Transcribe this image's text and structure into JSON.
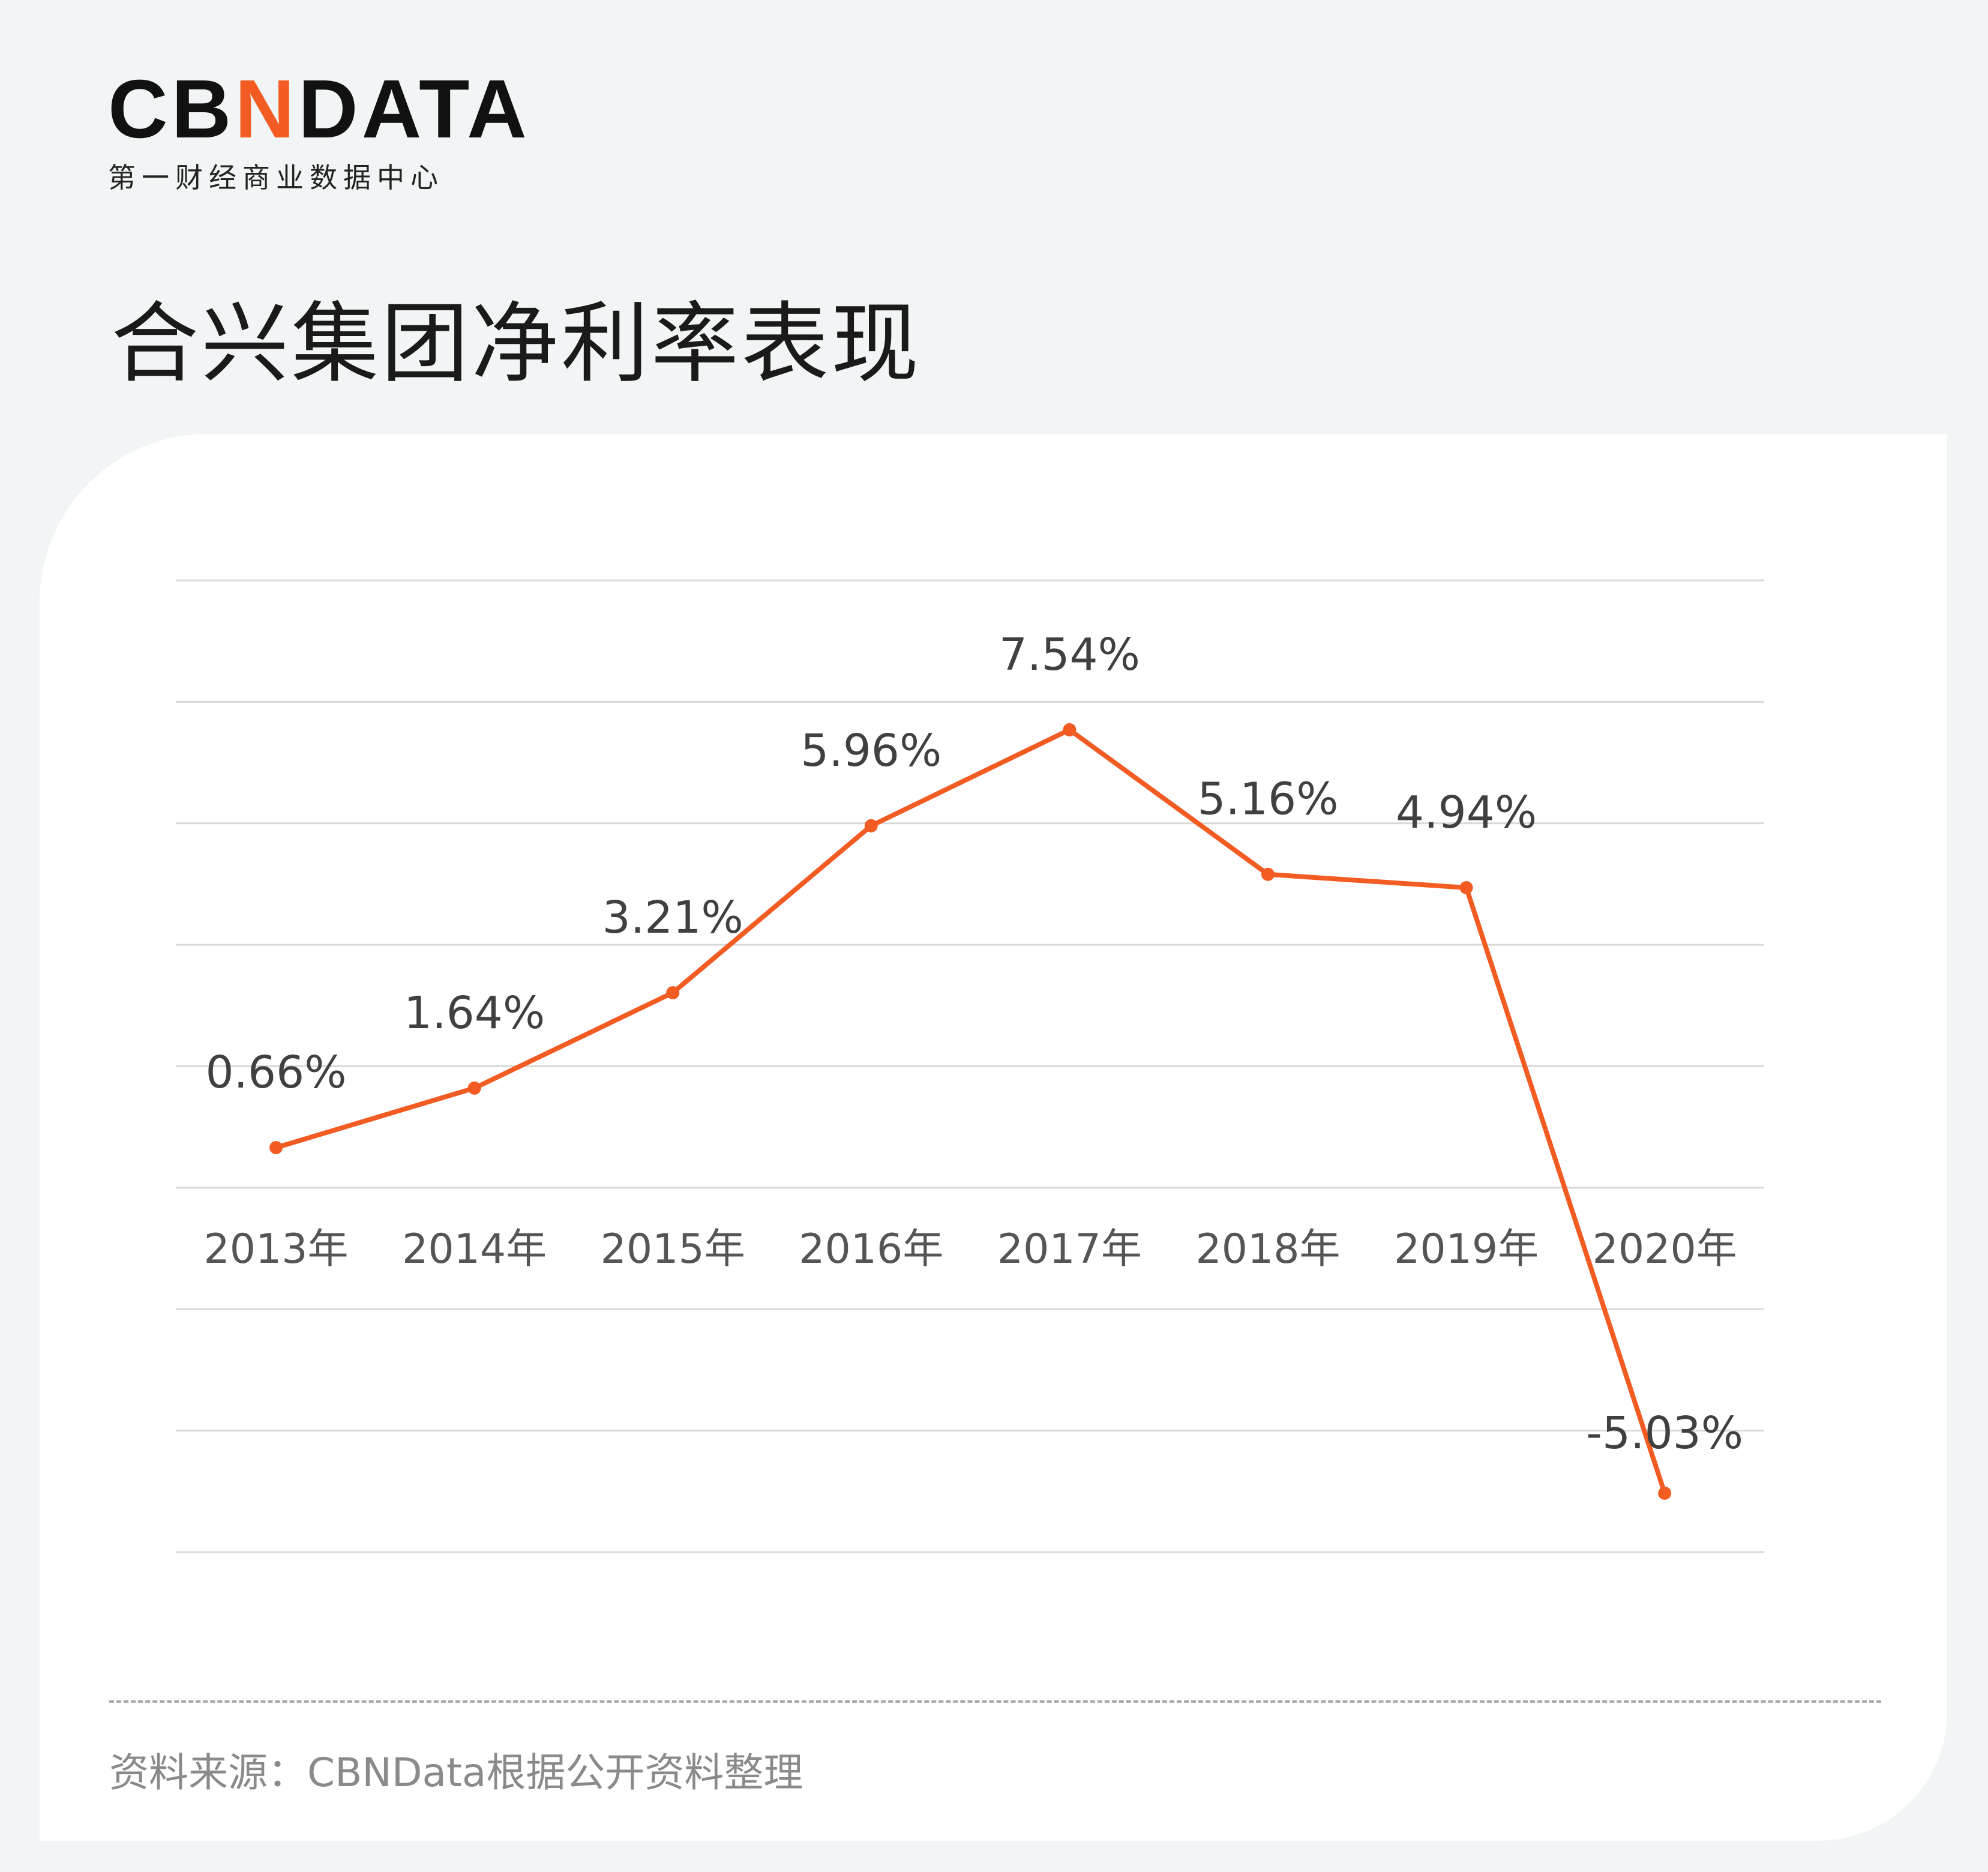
{
  "logo": {
    "text_pre": "CB",
    "text_n": "N",
    "text_post": "DATA",
    "subtitle": "第一财经商业数据中心"
  },
  "title": "合兴集团净利率表现",
  "source": "资料来源：CBNData根据公开资料整理",
  "colors": {
    "line": "#f25c22",
    "grid": "#d9d9d9",
    "label": "#404040",
    "axis_label": "#555555"
  },
  "chart_data": {
    "type": "line",
    "categories": [
      "2013年",
      "2014年",
      "2015年",
      "2016年",
      "2017年",
      "2018年",
      "2019年",
      "2020年"
    ],
    "values": [
      0.66,
      1.64,
      3.21,
      5.96,
      7.54,
      5.16,
      4.94,
      -5.03
    ],
    "data_labels": [
      "0.66%",
      "1.64%",
      "3.21%",
      "5.96%",
      "7.54%",
      "5.16%",
      "4.94%",
      "-5.03%"
    ],
    "ylim": [
      -6,
      10
    ],
    "ystep": 2,
    "grid": true,
    "y_tick_labels_shown": false
  }
}
